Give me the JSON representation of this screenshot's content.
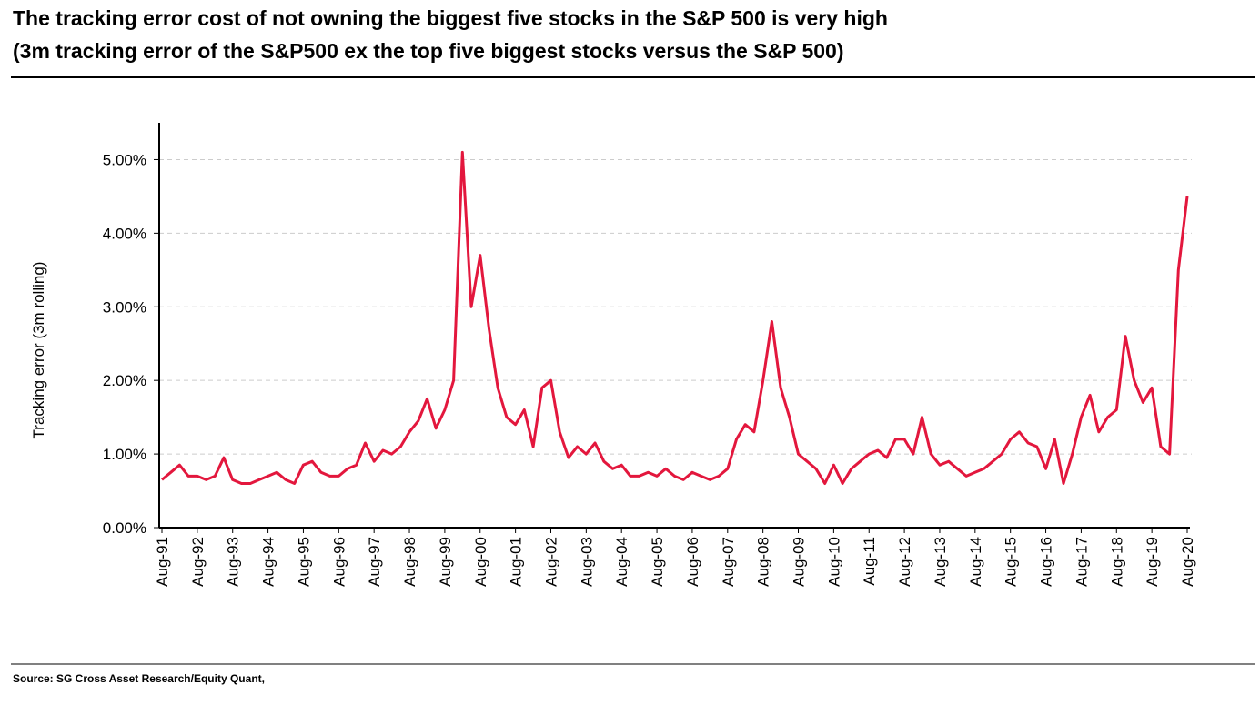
{
  "chart_data": {
    "type": "line",
    "title": "The tracking error cost of not owning the biggest five stocks in the S&P 500 is very high",
    "subtitle": "(3m tracking error of the S&P500 ex the top five biggest stocks versus the S&P 500)",
    "y_label": "Tracking error (3m rolling)",
    "source": "Source: SG Cross Asset Research/Equity Quant,",
    "categories": [
      "Aug-91",
      null,
      null,
      null,
      "Aug-92",
      null,
      null,
      null,
      "Aug-93",
      null,
      null,
      null,
      "Aug-94",
      null,
      null,
      null,
      "Aug-95",
      null,
      null,
      null,
      "Aug-96",
      null,
      null,
      null,
      "Aug-97",
      null,
      null,
      null,
      "Aug-98",
      null,
      null,
      null,
      "Aug-99",
      null,
      null,
      null,
      "Aug-00",
      null,
      null,
      null,
      "Aug-01",
      null,
      null,
      null,
      "Aug-02",
      null,
      null,
      null,
      "Aug-03",
      null,
      null,
      null,
      "Aug-04",
      null,
      null,
      null,
      "Aug-05",
      null,
      null,
      null,
      "Aug-06",
      null,
      null,
      null,
      "Aug-07",
      null,
      null,
      null,
      "Aug-08",
      null,
      null,
      null,
      "Aug-09",
      null,
      null,
      null,
      "Aug-10",
      null,
      null,
      null,
      "Aug-11",
      null,
      null,
      null,
      "Aug-12",
      null,
      null,
      null,
      "Aug-13",
      null,
      null,
      null,
      "Aug-14",
      null,
      null,
      null,
      "Aug-15",
      null,
      null,
      null,
      "Aug-16",
      null,
      null,
      null,
      "Aug-17",
      null,
      null,
      null,
      "Aug-18",
      null,
      null,
      null,
      "Aug-19",
      null,
      null,
      null,
      "Aug-20"
    ],
    "series": [
      {
        "name": "Tracking error",
        "color": "#e3173d",
        "values": [
          0.65,
          0.75,
          0.85,
          0.7,
          0.7,
          0.65,
          0.7,
          0.95,
          0.65,
          0.6,
          0.6,
          0.65,
          0.7,
          0.75,
          0.65,
          0.6,
          0.85,
          0.9,
          0.75,
          0.7,
          0.7,
          0.8,
          0.85,
          1.15,
          0.9,
          1.05,
          1.0,
          1.1,
          1.3,
          1.45,
          1.75,
          1.35,
          1.6,
          2.0,
          5.1,
          3.0,
          3.7,
          2.7,
          1.9,
          1.5,
          1.4,
          1.6,
          1.1,
          1.9,
          2.0,
          1.3,
          0.95,
          1.1,
          1.0,
          1.15,
          0.9,
          0.8,
          0.85,
          0.7,
          0.7,
          0.75,
          0.7,
          0.8,
          0.7,
          0.65,
          0.75,
          0.7,
          0.65,
          0.7,
          0.8,
          1.2,
          1.4,
          1.3,
          2.0,
          2.8,
          1.9,
          1.5,
          1.0,
          0.9,
          0.8,
          0.6,
          0.85,
          0.6,
          0.8,
          0.9,
          1.0,
          1.05,
          0.95,
          1.2,
          1.2,
          1.0,
          1.5,
          1.0,
          0.85,
          0.9,
          0.8,
          0.7,
          0.75,
          0.8,
          0.9,
          1.0,
          1.2,
          1.3,
          1.15,
          1.1,
          0.8,
          1.2,
          0.6,
          1.0,
          1.5,
          1.8,
          1.3,
          1.5,
          1.6,
          2.6,
          2.0,
          1.7,
          1.9,
          1.1,
          1.0,
          3.5,
          4.5
        ]
      }
    ],
    "ylim": [
      0,
      5.5
    ],
    "yticks": [
      {
        "value": 0,
        "label": "0.00%"
      },
      {
        "value": 1,
        "label": "1.00%"
      },
      {
        "value": 2,
        "label": "2.00%"
      },
      {
        "value": 3,
        "label": "3.00%"
      },
      {
        "value": 4,
        "label": "4.00%"
      },
      {
        "value": 5,
        "label": "5.00%"
      }
    ],
    "grid": true
  }
}
